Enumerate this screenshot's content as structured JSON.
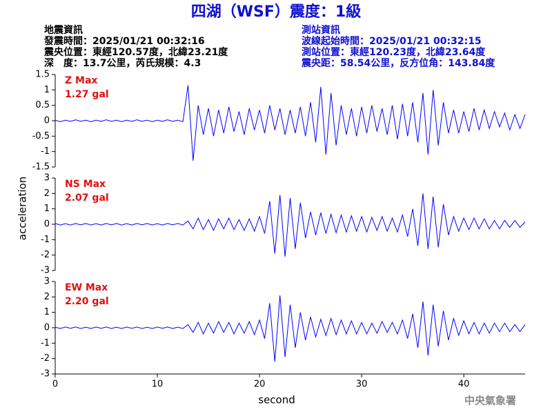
{
  "header": {
    "title": "四湖（WSF）震度：1級",
    "left": [
      "地震資訊",
      "發震時間：2025/01/21 00:32:16",
      "震央位置：東經120.57度，北緯23.21度",
      "深　度：13.7公里，芮氏規模：4.3"
    ],
    "right": [
      "測站資訊",
      "波線起始時間：2025/01/21 00:32:15",
      "測站位置：東經120.23度，北緯23.64度",
      "震央距：58.54公里，反方位角：143.84度"
    ],
    "footer": "中央氣象署"
  },
  "axes": {
    "ylabel": "acceleration",
    "xlabel": "second"
  },
  "chart_data": [
    {
      "type": "line",
      "annotations": [
        "Z Max",
        "1.27 gal"
      ],
      "color": "#0000ff",
      "xlim": [
        0,
        46
      ],
      "ylim": [
        -1.5,
        1.5
      ],
      "yticks": [
        1.5,
        1,
        0.5,
        0,
        -0.5,
        -1,
        -1.5
      ],
      "x": [
        0,
        0.5,
        1,
        1.5,
        2,
        2.5,
        3,
        3.5,
        4,
        4.5,
        5,
        5.5,
        6,
        6.5,
        7,
        7.5,
        8,
        8.5,
        9,
        9.5,
        10,
        10.5,
        11,
        11.5,
        12,
        12.5,
        13,
        13.5,
        14,
        14.5,
        15,
        15.5,
        16,
        16.5,
        17,
        17.5,
        18,
        18.5,
        19,
        19.5,
        20,
        20.5,
        21,
        21.5,
        22,
        22.5,
        23,
        23.5,
        24,
        24.5,
        25,
        25.5,
        26,
        26.5,
        27,
        27.5,
        28,
        28.5,
        29,
        29.5,
        30,
        30.5,
        31,
        31.5,
        32,
        32.5,
        33,
        33.5,
        34,
        34.5,
        35,
        35.5,
        36,
        36.5,
        37,
        37.5,
        38,
        38.5,
        39,
        39.5,
        40,
        40.5,
        41,
        41.5,
        42,
        42.5,
        43,
        43.5,
        44,
        44.5,
        45,
        45.5,
        46
      ],
      "values": [
        0.02,
        -0.03,
        0.02,
        -0.02,
        0.03,
        -0.02,
        0.02,
        -0.03,
        0.02,
        -0.02,
        0.03,
        -0.02,
        0.02,
        -0.03,
        0.02,
        -0.02,
        0.03,
        -0.02,
        0.02,
        -0.03,
        0.02,
        -0.02,
        0.03,
        -0.02,
        0.02,
        -0.03,
        1.15,
        -1.3,
        0.5,
        -0.45,
        0.4,
        -0.5,
        0.35,
        -0.4,
        0.45,
        -0.35,
        0.3,
        -0.45,
        0.4,
        -0.3,
        0.35,
        -0.4,
        0.5,
        -0.3,
        0.4,
        -0.45,
        0.35,
        -0.4,
        0.45,
        -0.5,
        0.6,
        -0.7,
        1.1,
        -1.1,
        0.9,
        -0.8,
        0.5,
        -0.45,
        0.4,
        -0.5,
        0.45,
        -0.4,
        0.5,
        -0.35,
        0.4,
        -0.45,
        0.5,
        -0.6,
        0.55,
        -0.5,
        0.6,
        -0.7,
        0.9,
        -1.1,
        1.0,
        -0.8,
        0.6,
        -0.4,
        0.35,
        -0.4,
        0.3,
        -0.35,
        0.4,
        -0.3,
        0.35,
        -0.25,
        0.3,
        -0.2,
        0.25,
        -0.3,
        0.2,
        -0.25,
        0.2
      ]
    },
    {
      "type": "line",
      "annotations": [
        "NS Max",
        "2.07 gal"
      ],
      "color": "#0000ff",
      "xlim": [
        0,
        46
      ],
      "ylim": [
        -3,
        3
      ],
      "yticks": [
        3,
        2,
        1,
        0,
        -1,
        -2,
        -3
      ],
      "x": [
        0,
        0.5,
        1,
        1.5,
        2,
        2.5,
        3,
        3.5,
        4,
        4.5,
        5,
        5.5,
        6,
        6.5,
        7,
        7.5,
        8,
        8.5,
        9,
        9.5,
        10,
        10.5,
        11,
        11.5,
        12,
        12.5,
        13,
        13.5,
        14,
        14.5,
        15,
        15.5,
        16,
        16.5,
        17,
        17.5,
        18,
        18.5,
        19,
        19.5,
        20,
        20.5,
        21,
        21.5,
        22,
        22.5,
        23,
        23.5,
        24,
        24.5,
        25,
        25.5,
        26,
        26.5,
        27,
        27.5,
        28,
        28.5,
        29,
        29.5,
        30,
        30.5,
        31,
        31.5,
        32,
        32.5,
        33,
        33.5,
        34,
        34.5,
        35,
        35.5,
        36,
        36.5,
        37,
        37.5,
        38,
        38.5,
        39,
        39.5,
        40,
        40.5,
        41,
        41.5,
        42,
        42.5,
        43,
        43.5,
        44,
        44.5,
        45,
        45.5,
        46
      ],
      "values": [
        0.05,
        -0.05,
        0.04,
        -0.05,
        0.05,
        -0.04,
        0.05,
        -0.05,
        0.04,
        -0.05,
        0.05,
        -0.04,
        0.05,
        -0.05,
        0.04,
        -0.05,
        0.05,
        -0.04,
        0.05,
        -0.05,
        0.04,
        -0.05,
        0.05,
        -0.04,
        0.05,
        -0.05,
        0.2,
        -0.3,
        0.4,
        -0.35,
        0.3,
        -0.4,
        0.35,
        -0.3,
        0.4,
        -0.35,
        0.3,
        -0.4,
        0.35,
        -0.45,
        0.5,
        -0.6,
        1.5,
        -1.9,
        1.9,
        -2.1,
        1.7,
        -1.6,
        1.4,
        -0.9,
        0.8,
        -0.7,
        0.75,
        -0.6,
        0.65,
        -0.55,
        0.6,
        -0.5,
        0.55,
        -0.45,
        0.5,
        -0.5,
        0.45,
        -0.4,
        0.5,
        -0.45,
        0.4,
        -0.5,
        0.6,
        -0.8,
        1.0,
        -1.4,
        2.0,
        -1.6,
        1.8,
        -1.5,
        1.3,
        -0.7,
        0.5,
        -0.45,
        0.4,
        -0.35,
        0.4,
        -0.3,
        0.35,
        -0.3,
        0.25,
        -0.3,
        0.25,
        -0.2,
        0.25,
        -0.2,
        0.15
      ]
    },
    {
      "type": "line",
      "annotations": [
        "EW Max",
        "2.20 gal"
      ],
      "color": "#0000ff",
      "xlim": [
        0,
        46
      ],
      "ylim": [
        -3,
        3
      ],
      "yticks": [
        3,
        2,
        1,
        0,
        -1,
        -2,
        -3
      ],
      "xticks": [
        0,
        10,
        20,
        30,
        40
      ],
      "x": [
        0,
        0.5,
        1,
        1.5,
        2,
        2.5,
        3,
        3.5,
        4,
        4.5,
        5,
        5.5,
        6,
        6.5,
        7,
        7.5,
        8,
        8.5,
        9,
        9.5,
        10,
        10.5,
        11,
        11.5,
        12,
        12.5,
        13,
        13.5,
        14,
        14.5,
        15,
        15.5,
        16,
        16.5,
        17,
        17.5,
        18,
        18.5,
        19,
        19.5,
        20,
        20.5,
        21,
        21.5,
        22,
        22.5,
        23,
        23.5,
        24,
        24.5,
        25,
        25.5,
        26,
        26.5,
        27,
        27.5,
        28,
        28.5,
        29,
        29.5,
        30,
        30.5,
        31,
        31.5,
        32,
        32.5,
        33,
        33.5,
        34,
        34.5,
        35,
        35.5,
        36,
        36.5,
        37,
        37.5,
        38,
        38.5,
        39,
        39.5,
        40,
        40.5,
        41,
        41.5,
        42,
        42.5,
        43,
        43.5,
        44,
        44.5,
        45,
        45.5,
        46
      ],
      "values": [
        0.04,
        -0.05,
        0.05,
        -0.04,
        0.05,
        -0.05,
        0.04,
        -0.05,
        0.05,
        -0.04,
        0.05,
        -0.05,
        0.04,
        -0.05,
        0.05,
        -0.04,
        0.05,
        -0.05,
        0.04,
        -0.05,
        0.05,
        -0.04,
        0.05,
        -0.05,
        0.04,
        -0.05,
        0.2,
        -0.3,
        0.35,
        -0.4,
        0.3,
        -0.35,
        0.4,
        -0.3,
        0.35,
        -0.4,
        0.3,
        -0.35,
        0.4,
        -0.45,
        0.5,
        -0.7,
        1.6,
        -2.2,
        2.1,
        -1.9,
        1.5,
        -1.3,
        1.0,
        -0.8,
        0.7,
        -0.6,
        0.55,
        -0.5,
        0.6,
        -0.45,
        0.5,
        -0.4,
        0.45,
        -0.4,
        0.35,
        -0.4,
        0.3,
        -0.35,
        0.4,
        -0.3,
        0.35,
        -0.4,
        0.5,
        -0.7,
        0.9,
        -1.3,
        1.7,
        -1.8,
        1.5,
        -1.2,
        1.1,
        -0.8,
        0.6,
        -0.5,
        0.45,
        -0.4,
        0.35,
        -0.4,
        0.3,
        -0.35,
        0.3,
        -0.25,
        0.3,
        -0.25,
        0.2,
        -0.25,
        0.2
      ]
    }
  ]
}
